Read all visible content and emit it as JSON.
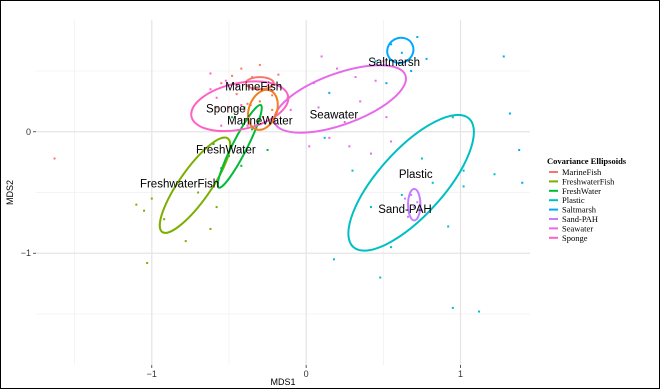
{
  "chart_data": {
    "type": "scatter",
    "xlabel": "MDS1",
    "ylabel": "MDS2",
    "xlim": [
      -1.75,
      1.45
    ],
    "ylim": [
      -1.92,
      0.92
    ],
    "x_ticks": [
      -1,
      0,
      1
    ],
    "y_ticks": [
      -1,
      0
    ],
    "grid": true,
    "legend": {
      "title": "Covariance Ellipsoids",
      "placement": "right"
    },
    "series": [
      {
        "name": "MarineFish",
        "color": "#F8766D",
        "points": [
          [
            -1.63,
            -0.22
          ],
          [
            -0.55,
            0.4
          ],
          [
            -0.48,
            0.46
          ],
          [
            -0.45,
            0.31
          ],
          [
            -0.42,
            0.52
          ],
          [
            -0.38,
            0.23
          ],
          [
            -0.35,
            0.45
          ],
          [
            -0.3,
            0.55
          ],
          [
            -0.25,
            0.38
          ],
          [
            -0.22,
            0.3
          ],
          [
            -0.4,
            0.18
          ],
          [
            -0.33,
            0.05
          ],
          [
            -0.18,
            0.47
          ],
          [
            -0.58,
            0.2
          ]
        ],
        "ellipse": {
          "cx": -0.3,
          "cy": 0.4,
          "rx": 0.09,
          "ry": 0.05,
          "angle": 0
        },
        "label": {
          "text": "MarineFish",
          "x": -0.34,
          "y": 0.34
        }
      },
      {
        "name": "FreshwaterFish",
        "color": "#7CAE00",
        "points": [
          [
            -1.1,
            -0.6
          ],
          [
            -1.05,
            -0.65
          ],
          [
            -1.0,
            -0.55
          ],
          [
            -0.92,
            -0.72
          ],
          [
            -0.78,
            -0.9
          ],
          [
            -0.62,
            -0.8
          ],
          [
            -0.58,
            -0.62
          ],
          [
            -1.03,
            -1.08
          ],
          [
            -0.7,
            -0.5
          ]
        ],
        "ellipse": {
          "cx": -0.72,
          "cy": -0.44,
          "rx": 0.37,
          "ry": 0.13,
          "angle": -55
        },
        "label": {
          "text": "FreshwaterFish",
          "x": -0.82,
          "y": -0.46
        }
      },
      {
        "name": "FreshWater",
        "color": "#00BA38",
        "points": [
          [
            -0.6,
            -0.1
          ],
          [
            -0.5,
            -0.2
          ],
          [
            -0.42,
            -0.28
          ],
          [
            -0.35,
            0.02
          ],
          [
            -0.48,
            0.12
          ],
          [
            -0.25,
            -0.15
          ],
          [
            -0.4,
            0.2
          ],
          [
            -0.55,
            -0.3
          ]
        ],
        "ellipse": {
          "cx": -0.43,
          "cy": -0.12,
          "rx": 0.3,
          "ry": 0.06,
          "angle": -63
        },
        "label": {
          "text": "FreshWater",
          "x": -0.52,
          "y": -0.18
        }
      },
      {
        "name": "Plastic",
        "color": "#00BFC4",
        "points": [
          [
            0.12,
            -0.05
          ],
          [
            0.3,
            -0.32
          ],
          [
            0.42,
            -0.62
          ],
          [
            0.62,
            -0.52
          ],
          [
            0.75,
            -0.22
          ],
          [
            0.82,
            -0.42
          ],
          [
            0.92,
            -0.78
          ],
          [
            1.02,
            -0.32
          ],
          [
            0.18,
            -1.05
          ],
          [
            0.55,
            -0.95
          ],
          [
            0.95,
            0.12
          ],
          [
            0.48,
            -1.2
          ],
          [
            0.95,
            -1.45
          ],
          [
            1.12,
            -1.48
          ],
          [
            1.22,
            -0.35
          ],
          [
            1.02,
            -0.45
          ]
        ],
        "ellipse": {
          "cx": 0.68,
          "cy": -0.42,
          "rx": 0.56,
          "ry": 0.27,
          "angle": -48
        },
        "label": {
          "text": "Plastic",
          "x": 0.71,
          "y": -0.38
        }
      },
      {
        "name": "Saltmarsh",
        "color": "#00A9FF",
        "points": [
          [
            0.45,
            0.58
          ],
          [
            0.55,
            0.72
          ],
          [
            0.62,
            0.65
          ],
          [
            0.72,
            0.78
          ],
          [
            0.68,
            0.5
          ],
          [
            0.78,
            0.6
          ],
          [
            0.15,
            0.32
          ],
          [
            1.28,
            0.62
          ],
          [
            0.52,
            0.4
          ],
          [
            1.32,
            0.15
          ],
          [
            1.38,
            -0.15
          ],
          [
            1.4,
            -0.42
          ]
        ],
        "ellipse": {
          "cx": 0.61,
          "cy": 0.67,
          "rx": 0.08,
          "ry": 0.11,
          "angle": 60
        },
        "label": {
          "text": "Saltmarsh",
          "x": 0.57,
          "y": 0.54
        }
      },
      {
        "name": "Sand-PAH",
        "color": "#C77CFF",
        "points": [
          [
            0.64,
            -0.55
          ],
          [
            0.68,
            -0.52
          ],
          [
            0.7,
            -0.62
          ],
          [
            0.66,
            -0.7
          ],
          [
            0.72,
            -0.58
          ],
          [
            0.75,
            -0.65
          ]
        ],
        "ellipse": {
          "cx": 0.7,
          "cy": -0.6,
          "rx": 0.04,
          "ry": 0.13,
          "angle": 0
        },
        "label": {
          "text": "Sand-PAH",
          "x": 0.64,
          "y": -0.67
        }
      },
      {
        "name": "Seawater",
        "color": "#E66BEB",
        "points": [
          [
            0.05,
            0.4
          ],
          [
            0.2,
            0.52
          ],
          [
            0.35,
            0.25
          ],
          [
            0.52,
            0.12
          ],
          [
            0.15,
            -0.05
          ],
          [
            0.28,
            -0.12
          ],
          [
            0.42,
            -0.18
          ],
          [
            0.08,
            0.2
          ],
          [
            0.32,
            0.45
          ],
          [
            0.55,
            -0.08
          ],
          [
            0.02,
            -0.12
          ],
          [
            0.25,
            0.08
          ],
          [
            0.45,
            0.42
          ],
          [
            -0.12,
            0.28
          ],
          [
            -0.1,
            0.18
          ],
          [
            0.1,
            0.62
          ],
          [
            0.5,
            0.58
          ]
        ],
        "ellipse": {
          "cx": 0.22,
          "cy": 0.27,
          "rx": 0.45,
          "ry": 0.21,
          "angle": -20
        },
        "label": {
          "text": "Seawater",
          "x": 0.18,
          "y": 0.11
        }
      },
      {
        "name": "Sponge",
        "color": "#FF61C3",
        "points": [
          [
            -0.62,
            0.35
          ],
          [
            -0.58,
            0.28
          ],
          [
            -0.52,
            0.42
          ],
          [
            -0.45,
            0.38
          ],
          [
            -0.5,
            0.2
          ],
          [
            -0.42,
            0.22
          ],
          [
            -0.38,
            0.05
          ],
          [
            -0.55,
            0.05
          ],
          [
            -0.35,
            0.35
          ],
          [
            -0.62,
            0.48
          ]
        ],
        "ellipse": {
          "cx": -0.43,
          "cy": 0.21,
          "rx": 0.32,
          "ry": 0.19,
          "angle": -12
        },
        "label": {
          "text": "Sponge",
          "x": -0.52,
          "y": 0.16
        }
      },
      {
        "name": "MarineWater",
        "color": "#F07F1E",
        "points": [
          [
            -0.3,
            0.25
          ],
          [
            -0.28,
            0.12
          ],
          [
            -0.22,
            0.18
          ],
          [
            -0.36,
            0.22
          ]
        ],
        "ellipse": {
          "cx": -0.28,
          "cy": 0.18,
          "rx": 0.09,
          "ry": 0.17,
          "angle": 20
        },
        "label": {
          "text": "MarineWater",
          "x": -0.3,
          "y": 0.06
        },
        "in_legend": false
      }
    ]
  }
}
